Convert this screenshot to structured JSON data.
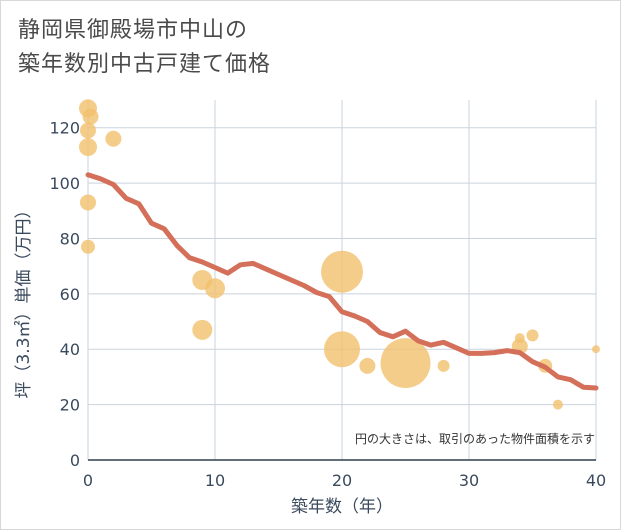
{
  "chart_data": {
    "type": "scatter+line",
    "title_lines": [
      "静岡県御殿場市中山の",
      "築年数別中古戸建て価格"
    ],
    "xlabel": "築年数（年）",
    "ylabel": "坪（3.3㎡）単価（万円）",
    "xlim": [
      0,
      40
    ],
    "ylim": [
      0,
      130
    ],
    "xticks": [
      0,
      10,
      20,
      30,
      40
    ],
    "yticks": [
      0,
      20,
      40,
      60,
      80,
      100,
      120
    ],
    "note": "円の大きさは、取引のあった物件面積を示す",
    "colors": {
      "line": "#d4705a",
      "bubble": "#f3c06e",
      "grid": "#c9d3dd"
    },
    "line": {
      "x": [
        0,
        1,
        2,
        3,
        4,
        5,
        6,
        7,
        8,
        9,
        10,
        11,
        12,
        13,
        14,
        15,
        16,
        17,
        18,
        19,
        20,
        21,
        22,
        23,
        24,
        25,
        26,
        27,
        28,
        29,
        30,
        31,
        32,
        33,
        34,
        35,
        36,
        37,
        38,
        39,
        40
      ],
      "y": [
        103,
        101.5,
        99.5,
        94.5,
        92.5,
        85.5,
        83.5,
        77.5,
        73,
        71.5,
        69.5,
        67.5,
        70.5,
        71,
        69,
        67,
        65,
        63,
        60.5,
        59,
        53.5,
        52,
        50,
        46,
        44.5,
        46.5,
        43,
        41.5,
        42.5,
        40.5,
        38.5,
        38.5,
        38.8,
        39.5,
        38.8,
        35.5,
        33.5,
        30,
        29,
        26.3,
        26
      ]
    },
    "bubbles": [
      {
        "x": 0,
        "y": 127,
        "size": 9
      },
      {
        "x": 0.2,
        "y": 124,
        "size": 8
      },
      {
        "x": 0,
        "y": 119,
        "size": 8
      },
      {
        "x": 0,
        "y": 113,
        "size": 9
      },
      {
        "x": 2,
        "y": 116,
        "size": 8
      },
      {
        "x": 0,
        "y": 93,
        "size": 8
      },
      {
        "x": 0,
        "y": 77,
        "size": 7
      },
      {
        "x": 9,
        "y": 65,
        "size": 10
      },
      {
        "x": 10,
        "y": 62,
        "size": 10
      },
      {
        "x": 9,
        "y": 47,
        "size": 10
      },
      {
        "x": 20,
        "y": 68,
        "size": 21
      },
      {
        "x": 20,
        "y": 40,
        "size": 18
      },
      {
        "x": 22,
        "y": 34,
        "size": 8
      },
      {
        "x": 25,
        "y": 35,
        "size": 25
      },
      {
        "x": 28,
        "y": 34,
        "size": 6
      },
      {
        "x": 34,
        "y": 44,
        "size": 5
      },
      {
        "x": 34,
        "y": 41,
        "size": 8
      },
      {
        "x": 35,
        "y": 45,
        "size": 6
      },
      {
        "x": 36,
        "y": 34,
        "size": 7
      },
      {
        "x": 37,
        "y": 20,
        "size": 5
      },
      {
        "x": 40,
        "y": 40,
        "size": 4
      }
    ]
  }
}
